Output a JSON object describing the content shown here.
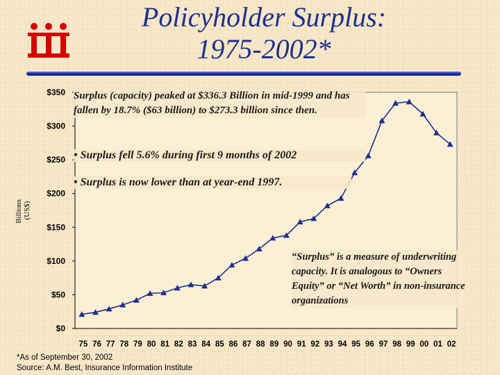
{
  "header": {
    "title_line1": "Policyholder Surplus:",
    "title_line2": "1975-2002*"
  },
  "logo": {
    "text": "iii",
    "color": "#d40000"
  },
  "colors": {
    "title": "#1f2f8c",
    "line": "#1f2f8c",
    "bar": "#1f2f8c"
  },
  "annotations": {
    "main": "Surplus (capacity) peaked at $336.3 Billion in mid-1999 and has fallen by 18.7% ($63 billion) to $273.3 billion since then.",
    "bullet1": "• Surplus fell 5.6% during first 9 months of 2002",
    "bullet2": "• Surplus is now lower than at year-end 1997.",
    "definition": "“Surplus” is a measure of underwriting capacity. It is analogous to “Owners Equity” or “Net Worth” in non-insurance organizations"
  },
  "footnote": {
    "line1": "*As of September 30, 2002",
    "line2": "Source: A.M. Best, Insurance Information Institute"
  },
  "chart_data": {
    "type": "line",
    "title": "Policyholder Surplus: 1975-2002*",
    "ylabel": "Billions (US$)",
    "xlabel": "",
    "ylim": [
      0,
      350
    ],
    "yticks": [
      "$0",
      "$50",
      "$100",
      "$150",
      "$200",
      "$250",
      "$300",
      "$350"
    ],
    "grid": false,
    "categories": [
      "75",
      "76",
      "77",
      "78",
      "79",
      "80",
      "81",
      "82",
      "83",
      "84",
      "85",
      "86",
      "87",
      "88",
      "89",
      "90",
      "91",
      "92",
      "93",
      "94",
      "95",
      "96",
      "97",
      "98",
      "99",
      "00",
      "01",
      "02"
    ],
    "values": [
      21,
      24,
      29,
      35,
      42,
      52,
      53,
      60,
      65,
      63,
      75,
      94,
      104,
      118,
      134,
      138,
      158,
      163,
      182,
      193,
      231,
      256,
      308,
      334,
      336,
      318,
      290,
      273
    ]
  }
}
